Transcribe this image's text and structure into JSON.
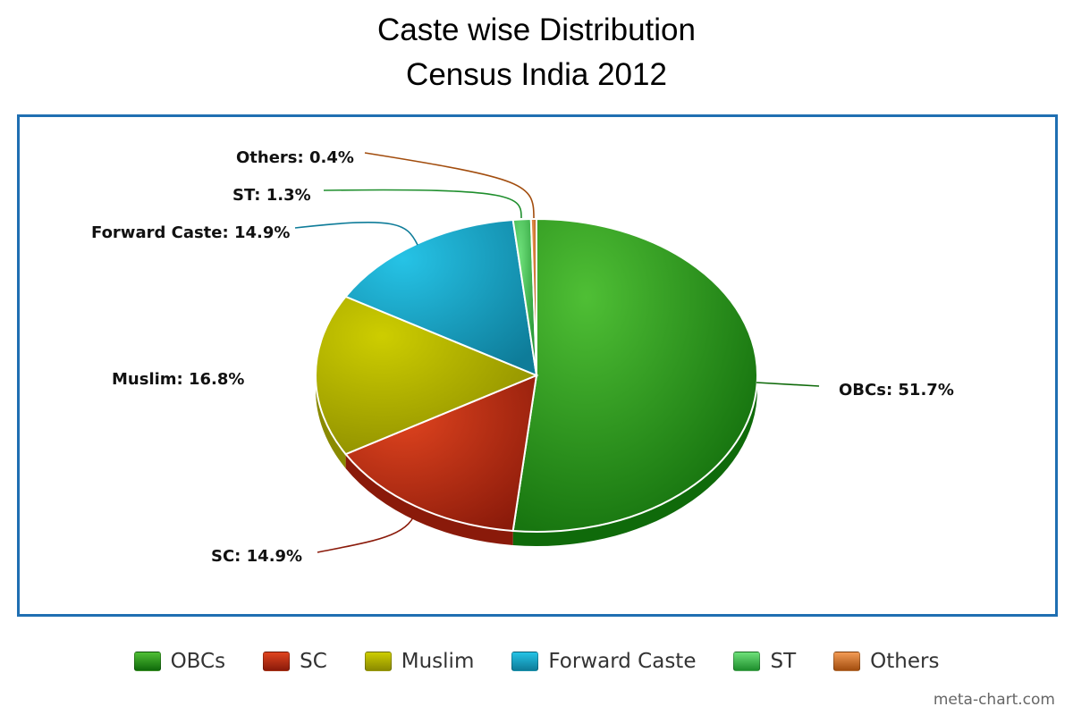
{
  "chart_data": {
    "type": "pie",
    "title": "Caste wise Distribution",
    "subtitle": "Census India 2012",
    "slices": [
      {
        "name": "OBCs",
        "value": 51.7,
        "label": "OBCs: 51.7%",
        "color": "#2f9a1f",
        "dark": "#0f6a0a",
        "light": "#4fbf35"
      },
      {
        "name": "SC",
        "value": 14.9,
        "label": "SC: 14.9%",
        "color": "#c9301a",
        "dark": "#8a1a0a",
        "light": "#e0441f"
      },
      {
        "name": "Muslim",
        "value": 16.8,
        "label": "Muslim: 16.8%",
        "color": "#b6b600",
        "dark": "#8a8a00",
        "light": "#cdcd00"
      },
      {
        "name": "Forward Caste",
        "value": 14.9,
        "label": "Forward Caste: 14.9%",
        "color": "#19a9c9",
        "dark": "#0e7c99",
        "light": "#26c3e6"
      },
      {
        "name": "ST",
        "value": 1.3,
        "label": "ST: 1.3%",
        "color": "#3fc44f",
        "dark": "#1e8e2c",
        "light": "#6ee07a"
      },
      {
        "name": "Others",
        "value": 0.4,
        "label": "Others: 0.4%",
        "color": "#e0701f",
        "dark": "#a24d0e",
        "light": "#f39b55"
      }
    ],
    "legend_position": "bottom"
  },
  "credit": "meta-chart.com"
}
